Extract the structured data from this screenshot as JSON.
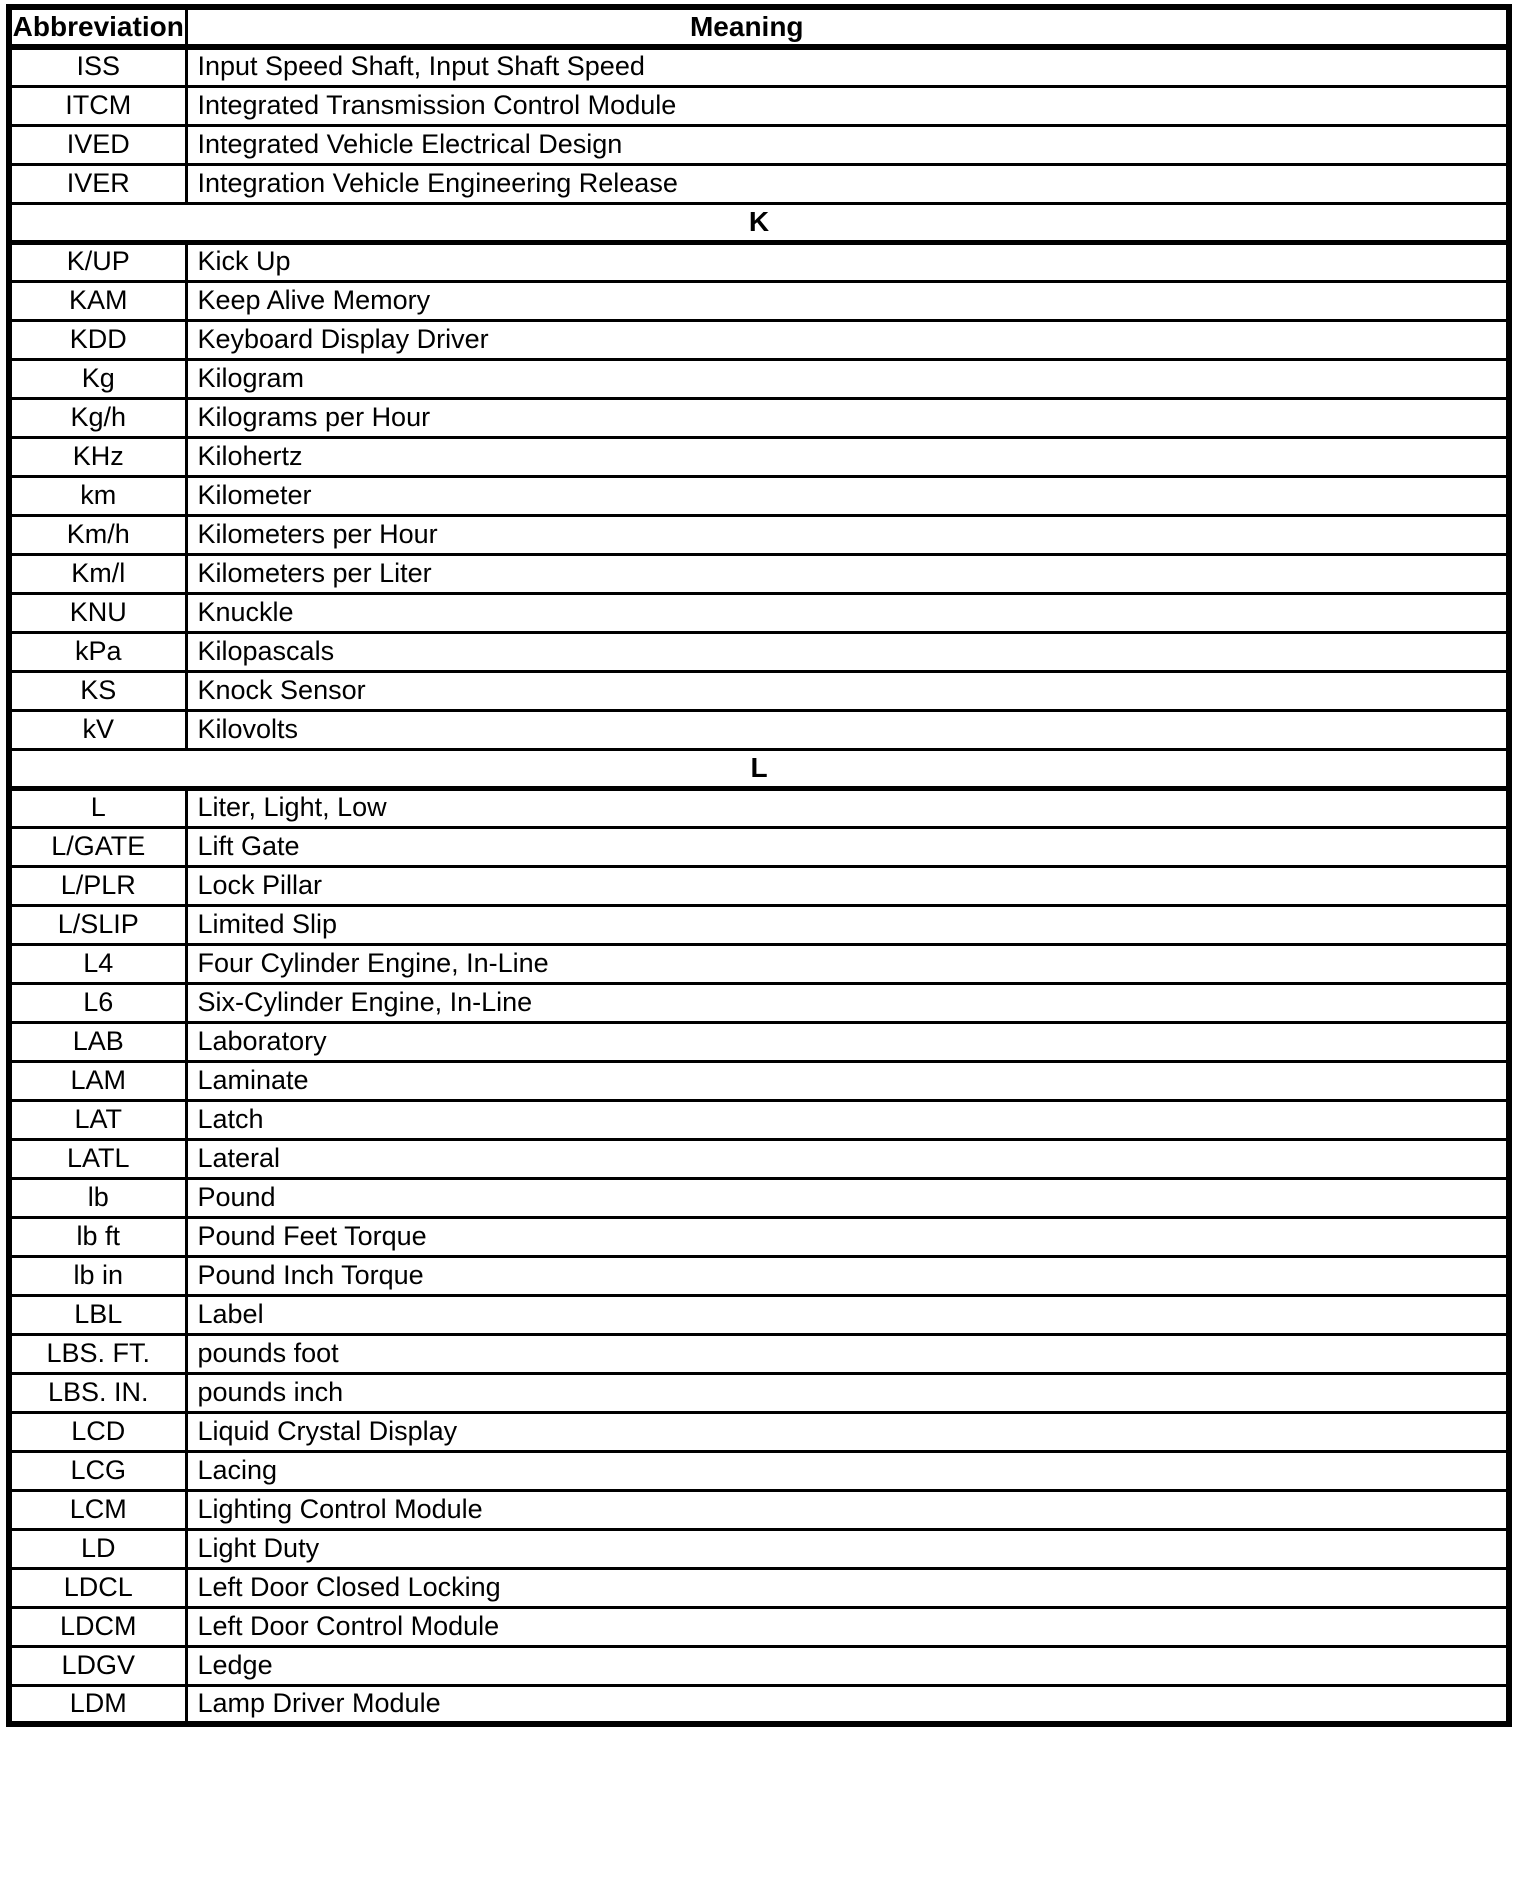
{
  "table": {
    "headers": {
      "abbreviation": "Abbreviation",
      "meaning": "Meaning"
    },
    "rows": [
      {
        "type": "entry",
        "abbr": "ISS",
        "meaning": "Input Speed Shaft, Input Shaft Speed"
      },
      {
        "type": "entry",
        "abbr": "ITCM",
        "meaning": "Integrated Transmission Control Module"
      },
      {
        "type": "entry",
        "abbr": "IVED",
        "meaning": "Integrated Vehicle Electrical Design"
      },
      {
        "type": "entry",
        "abbr": "IVER",
        "meaning": "Integration Vehicle Engineering Release"
      },
      {
        "type": "section",
        "letter": "K"
      },
      {
        "type": "entry",
        "abbr": "K/UP",
        "meaning": "Kick Up"
      },
      {
        "type": "entry",
        "abbr": "KAM",
        "meaning": "Keep Alive Memory"
      },
      {
        "type": "entry",
        "abbr": "KDD",
        "meaning": "Keyboard Display Driver"
      },
      {
        "type": "entry",
        "abbr": "Kg",
        "meaning": "Kilogram"
      },
      {
        "type": "entry",
        "abbr": "Kg/h",
        "meaning": "Kilograms per Hour"
      },
      {
        "type": "entry",
        "abbr": "KHz",
        "meaning": "Kilohertz"
      },
      {
        "type": "entry",
        "abbr": "km",
        "meaning": "Kilometer"
      },
      {
        "type": "entry",
        "abbr": "Km/h",
        "meaning": "Kilometers per Hour"
      },
      {
        "type": "entry",
        "abbr": "Km/l",
        "meaning": "Kilometers per Liter"
      },
      {
        "type": "entry",
        "abbr": "KNU",
        "meaning": "Knuckle"
      },
      {
        "type": "entry",
        "abbr": "kPa",
        "meaning": "Kilopascals"
      },
      {
        "type": "entry",
        "abbr": "KS",
        "meaning": "Knock Sensor"
      },
      {
        "type": "entry",
        "abbr": "kV",
        "meaning": "Kilovolts"
      },
      {
        "type": "section",
        "letter": "L"
      },
      {
        "type": "entry",
        "abbr": "L",
        "meaning": "Liter, Light, Low"
      },
      {
        "type": "entry",
        "abbr": "L/GATE",
        "meaning": "Lift Gate"
      },
      {
        "type": "entry",
        "abbr": "L/PLR",
        "meaning": "Lock Pillar"
      },
      {
        "type": "entry",
        "abbr": "L/SLIP",
        "meaning": "Limited Slip"
      },
      {
        "type": "entry",
        "abbr": "L4",
        "meaning": "Four Cylinder Engine, In-Line"
      },
      {
        "type": "entry",
        "abbr": "L6",
        "meaning": "Six-Cylinder Engine, In-Line"
      },
      {
        "type": "entry",
        "abbr": "LAB",
        "meaning": "Laboratory"
      },
      {
        "type": "entry",
        "abbr": "LAM",
        "meaning": "Laminate"
      },
      {
        "type": "entry",
        "abbr": "LAT",
        "meaning": "Latch"
      },
      {
        "type": "entry",
        "abbr": "LATL",
        "meaning": "Lateral"
      },
      {
        "type": "entry",
        "abbr": "lb",
        "meaning": "Pound"
      },
      {
        "type": "entry",
        "abbr": "lb ft",
        "meaning": "Pound Feet Torque"
      },
      {
        "type": "entry",
        "abbr": "lb in",
        "meaning": "Pound Inch Torque"
      },
      {
        "type": "entry",
        "abbr": "LBL",
        "meaning": "Label"
      },
      {
        "type": "entry",
        "abbr": "LBS. FT.",
        "meaning": "pounds foot"
      },
      {
        "type": "entry",
        "abbr": "LBS. IN.",
        "meaning": "pounds inch"
      },
      {
        "type": "entry",
        "abbr": "LCD",
        "meaning": "Liquid Crystal Display"
      },
      {
        "type": "entry",
        "abbr": "LCG",
        "meaning": "Lacing"
      },
      {
        "type": "entry",
        "abbr": "LCM",
        "meaning": "Lighting Control Module"
      },
      {
        "type": "entry",
        "abbr": "LD",
        "meaning": "Light Duty"
      },
      {
        "type": "entry",
        "abbr": "LDCL",
        "meaning": "Left Door Closed Locking"
      },
      {
        "type": "entry",
        "abbr": "LDCM",
        "meaning": "Left Door Control Module"
      },
      {
        "type": "entry",
        "abbr": "LDGV",
        "meaning": "Ledge"
      },
      {
        "type": "entry",
        "abbr": "LDM",
        "meaning": "Lamp Driver Module"
      }
    ]
  }
}
